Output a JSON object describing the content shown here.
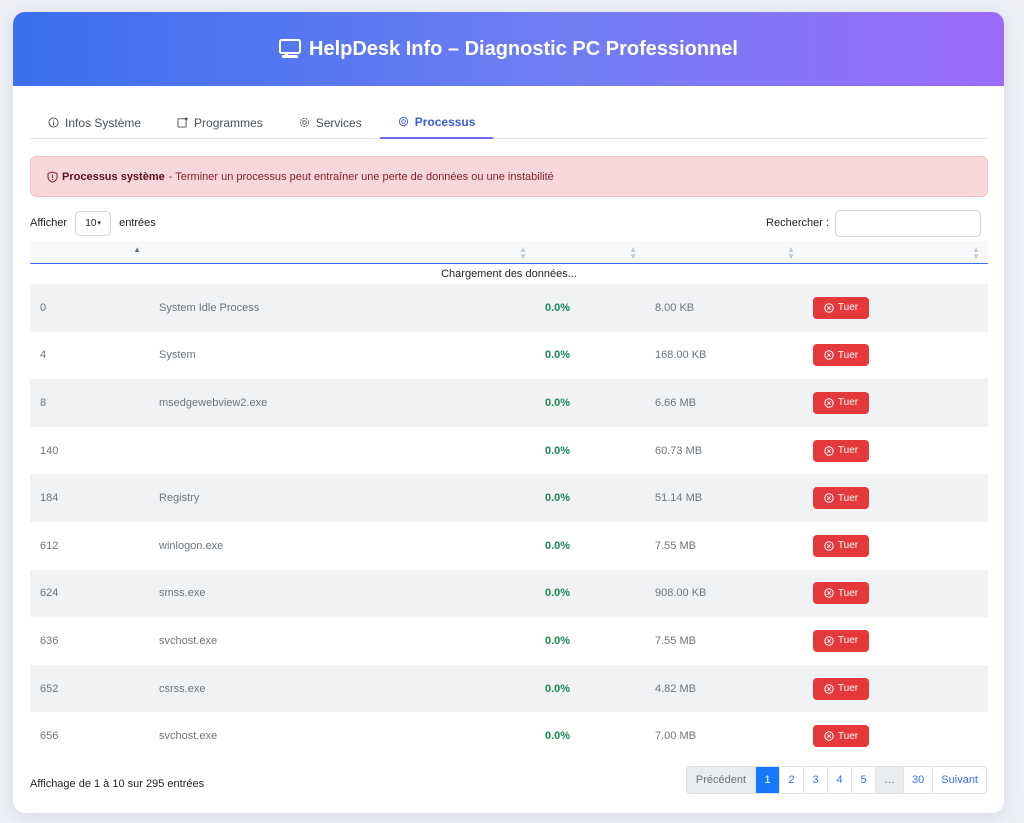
{
  "header": {
    "title": "HelpDesk Info – Diagnostic PC Professionnel"
  },
  "tabs": [
    {
      "label": "Infos Système",
      "icon": "info-circle-icon",
      "active": false
    },
    {
      "label": "Programmes",
      "icon": "package-icon",
      "active": false
    },
    {
      "label": "Services",
      "icon": "gear-icon",
      "active": false
    },
    {
      "label": "Processus",
      "icon": "cpu-icon",
      "active": true
    }
  ],
  "alert": {
    "title": "Processus système",
    "text": " - Terminer un processus peut entraîner une perte de données ou une instabilité"
  },
  "length": {
    "prefix": "Afficher",
    "value": "10",
    "suffix": "entrées"
  },
  "search": {
    "label": "Rechercher :",
    "value": ""
  },
  "table": {
    "loading": "Chargement des données...",
    "rows": [
      {
        "pid": "0",
        "name": "System Idle Process",
        "cpu": "0.0%",
        "mem": "8.00 KB",
        "action": "Tuer"
      },
      {
        "pid": "4",
        "name": "System",
        "cpu": "0.0%",
        "mem": "168.00 KB",
        "action": "Tuer"
      },
      {
        "pid": "8",
        "name": "msedgewebview2.exe",
        "cpu": "0.0%",
        "mem": "6.66 MB",
        "action": "Tuer"
      },
      {
        "pid": "140",
        "name": "",
        "cpu": "0.0%",
        "mem": "60.73 MB",
        "action": "Tuer"
      },
      {
        "pid": "184",
        "name": "Registry",
        "cpu": "0.0%",
        "mem": "51.14 MB",
        "action": "Tuer"
      },
      {
        "pid": "612",
        "name": "winlogon.exe",
        "cpu": "0.0%",
        "mem": "7.55 MB",
        "action": "Tuer"
      },
      {
        "pid": "624",
        "name": "smss.exe",
        "cpu": "0.0%",
        "mem": "908.00 KB",
        "action": "Tuer"
      },
      {
        "pid": "636",
        "name": "svchost.exe",
        "cpu": "0.0%",
        "mem": "7.55 MB",
        "action": "Tuer"
      },
      {
        "pid": "652",
        "name": "csrss.exe",
        "cpu": "0.0%",
        "mem": "4.82 MB",
        "action": "Tuer"
      },
      {
        "pid": "656",
        "name": "svchost.exe",
        "cpu": "0.0%",
        "mem": "7.00 MB",
        "action": "Tuer"
      }
    ]
  },
  "footer": {
    "info": "Affichage de 1 à 10 sur 295 entrées",
    "pagination": {
      "previous": "Précédent",
      "pages": [
        "1",
        "2",
        "3",
        "4",
        "5",
        "…",
        "30"
      ],
      "next": "Suivant",
      "current": "1"
    }
  },
  "colors": {
    "accent": "#3b6ff0",
    "danger": "#e5383b",
    "success": "#198754",
    "alert_bg": "#f8d7da"
  }
}
